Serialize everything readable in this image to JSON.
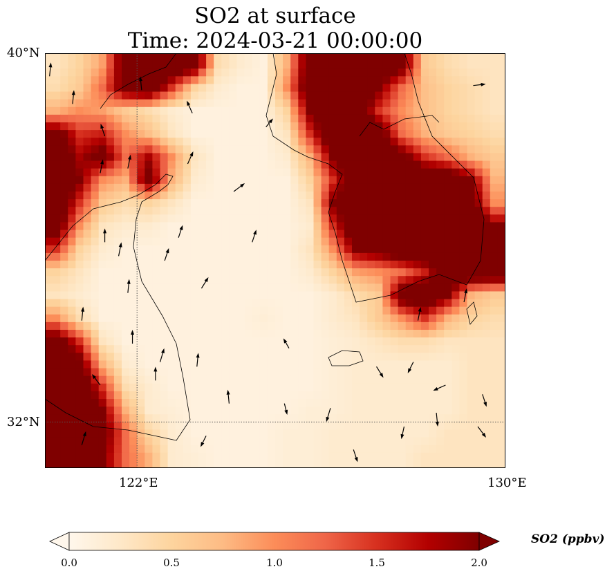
{
  "title": {
    "line1": "SO2 at surface",
    "line2": "Time: 2024-03-21 00:00:00"
  },
  "axes": {
    "lat_labels": [
      "40°N",
      "32°N"
    ],
    "lon_labels": [
      "122°E",
      "130°E"
    ]
  },
  "colorbar": {
    "label": "SO2 (ppbv)",
    "ticks": [
      "0.0",
      "0.5",
      "1.0",
      "1.5",
      "2.0"
    ],
    "min": 0,
    "max": 2.0,
    "colors": [
      "#fff7ec",
      "#fee8c8",
      "#fdd49e",
      "#fdbb84",
      "#fc8d59",
      "#ef6548",
      "#d7301f",
      "#b30000",
      "#7f0000"
    ]
  },
  "chart_data": {
    "type": "heatmap",
    "variable": "SO2 (ppbv)",
    "lon_range": [
      120,
      130
    ],
    "lat_range": [
      31,
      40
    ],
    "cell_deg": 0.5,
    "grid_rows_north_to_south": [
      [
        0.3,
        0.5,
        0.9,
        2.3,
        2.5,
        2.5,
        2.3,
        0.4,
        0.2,
        0.1,
        0.8,
        2.3,
        2.5,
        2.5,
        2.5,
        2.2,
        0.6,
        0.4,
        0.3,
        0.3
      ],
      [
        0.4,
        0.6,
        1.2,
        2.2,
        2.5,
        1.5,
        0.5,
        0.2,
        0.1,
        0.1,
        1.0,
        2.4,
        2.5,
        2.5,
        2.0,
        1.2,
        0.7,
        0.5,
        0.4,
        0.3
      ],
      [
        0.8,
        1.0,
        0.9,
        0.6,
        0.4,
        0.2,
        0.1,
        0.1,
        0.1,
        0.1,
        0.5,
        2.0,
        2.5,
        2.5,
        1.5,
        1.0,
        0.7,
        0.5,
        0.4,
        0.3
      ],
      [
        2.2,
        1.5,
        1.6,
        1.0,
        0.7,
        0.3,
        0.1,
        0.1,
        0.1,
        0.1,
        0.3,
        1.5,
        2.5,
        2.5,
        2.3,
        1.2,
        0.8,
        0.6,
        0.5,
        0.4
      ],
      [
        2.5,
        1.8,
        2.2,
        1.2,
        1.8,
        1.0,
        0.3,
        0.1,
        0.1,
        0.1,
        0.2,
        0.8,
        2.0,
        2.5,
        2.5,
        2.2,
        1.5,
        1.2,
        0.8,
        0.6
      ],
      [
        2.5,
        2.0,
        1.0,
        0.8,
        2.2,
        0.8,
        0.2,
        0.1,
        0.1,
        0.1,
        0.1,
        0.5,
        1.5,
        2.5,
        2.5,
        2.5,
        2.5,
        2.5,
        2.0,
        0.8
      ],
      [
        2.5,
        1.5,
        0.6,
        0.4,
        0.5,
        0.3,
        0.1,
        0.1,
        0.1,
        0.1,
        0.1,
        0.3,
        2.0,
        2.5,
        2.5,
        2.5,
        2.5,
        2.5,
        2.3,
        1.0
      ],
      [
        2.3,
        1.0,
        0.3,
        0.2,
        0.2,
        0.1,
        0.1,
        0.1,
        0.1,
        0.1,
        0.1,
        0.2,
        1.5,
        2.5,
        2.5,
        2.5,
        2.5,
        2.5,
        2.5,
        2.0
      ],
      [
        1.5,
        0.5,
        0.2,
        0.1,
        0.1,
        0.1,
        0.1,
        0.1,
        0.1,
        0.1,
        0.1,
        0.3,
        1.0,
        2.0,
        2.2,
        2.5,
        2.5,
        2.5,
        2.5,
        2.5
      ],
      [
        0.5,
        0.3,
        0.1,
        0.1,
        0.1,
        0.1,
        0.1,
        0.1,
        0.1,
        0.1,
        0.1,
        0.2,
        0.5,
        0.9,
        1.0,
        1.2,
        1.6,
        2.5,
        2.5,
        2.5
      ],
      [
        0.3,
        0.2,
        0.1,
        0.1,
        0.1,
        0.1,
        0.1,
        0.1,
        0.1,
        0.1,
        0.1,
        0.1,
        0.2,
        0.4,
        0.6,
        2.3,
        2.5,
        2.0,
        0.8,
        0.6
      ],
      [
        1.0,
        0.4,
        0.1,
        0.1,
        0.1,
        0.1,
        0.1,
        0.1,
        0.1,
        0.15,
        0.1,
        0.1,
        0.2,
        0.3,
        0.6,
        1.0,
        1.5,
        0.8,
        0.5,
        0.4
      ],
      [
        2.3,
        1.5,
        0.3,
        0.1,
        0.1,
        0.1,
        0.1,
        0.1,
        0.1,
        0.1,
        0.1,
        0.1,
        0.15,
        0.2,
        0.3,
        0.4,
        0.4,
        0.3,
        0.3,
        0.3
      ],
      [
        2.5,
        2.2,
        0.8,
        0.2,
        0.1,
        0.1,
        0.1,
        0.1,
        0.1,
        0.1,
        0.1,
        0.1,
        0.15,
        0.2,
        0.2,
        0.2,
        0.2,
        0.2,
        0.3,
        0.3
      ],
      [
        2.5,
        2.5,
        1.5,
        0.4,
        0.2,
        0.1,
        0.1,
        0.1,
        0.1,
        0.1,
        0.1,
        0.1,
        0.15,
        0.2,
        0.2,
        0.2,
        0.2,
        0.2,
        0.3,
        0.3
      ],
      [
        2.5,
        2.5,
        2.0,
        0.8,
        0.2,
        0.15,
        0.1,
        0.1,
        0.1,
        0.1,
        0.1,
        0.15,
        0.15,
        0.2,
        0.2,
        0.2,
        0.2,
        0.2,
        0.3,
        0.3
      ],
      [
        2.5,
        2.5,
        2.2,
        1.2,
        0.5,
        0.2,
        0.1,
        0.1,
        0.1,
        0.1,
        0.15,
        0.15,
        0.2,
        0.2,
        0.2,
        0.2,
        0.2,
        0.3,
        0.3,
        0.3
      ],
      [
        2.5,
        2.5,
        2.0,
        1.2,
        0.8,
        0.2,
        0.15,
        0.1,
        0.1,
        0.1,
        0.15,
        0.15,
        0.2,
        0.2,
        0.2,
        0.2,
        0.3,
        0.3,
        0.3,
        0.3
      ]
    ],
    "wind_vectors": [
      [
        120.1,
        39.5,
        0.1,
        1
      ],
      [
        120.6,
        38.9,
        0.1,
        1
      ],
      [
        121.3,
        38.2,
        -0.3,
        0.9
      ],
      [
        122.1,
        39.2,
        -0.1,
        1
      ],
      [
        123.2,
        38.7,
        -0.4,
        0.9
      ],
      [
        121.2,
        37.4,
        0.2,
        1
      ],
      [
        121.8,
        37.5,
        0.2,
        1
      ],
      [
        123.1,
        37.6,
        0.4,
        0.9
      ],
      [
        124.1,
        37,
        0.8,
        0.6
      ],
      [
        124.5,
        35.9,
        0.3,
        0.9
      ],
      [
        121.3,
        35.9,
        0,
        1
      ],
      [
        121.6,
        35.6,
        0.2,
        1
      ],
      [
        122.6,
        35.5,
        0.3,
        0.9
      ],
      [
        123.4,
        34.9,
        0.5,
        0.8
      ],
      [
        121.8,
        34.8,
        0.1,
        1
      ],
      [
        120.8,
        34.2,
        0.1,
        1
      ],
      [
        121.9,
        33.7,
        0,
        1
      ],
      [
        122.5,
        33.3,
        0.3,
        1
      ],
      [
        123.3,
        33.2,
        0.1,
        1
      ],
      [
        121.2,
        32.8,
        -0.6,
        0.8
      ],
      [
        122.4,
        32.9,
        0,
        1
      ],
      [
        124,
        32.4,
        -0.1,
        1
      ],
      [
        125.3,
        33.6,
        -0.4,
        0.7
      ],
      [
        127.2,
        33.2,
        0.5,
        -0.8
      ],
      [
        128,
        33.3,
        -0.4,
        -0.8
      ],
      [
        129.5,
        32.6,
        0.3,
        -0.9
      ],
      [
        128.7,
        32.8,
        -0.9,
        -0.4
      ],
      [
        127.8,
        31.9,
        -0.2,
        -0.9
      ],
      [
        128.5,
        32.2,
        0.1,
        -1
      ],
      [
        126.2,
        32.3,
        -0.3,
        -1
      ],
      [
        125.2,
        32.4,
        0.2,
        -0.8
      ],
      [
        126.7,
        31.4,
        0.3,
        -0.9
      ],
      [
        129.4,
        31.9,
        0.6,
        -0.8
      ],
      [
        123.5,
        31.7,
        -0.4,
        -0.8
      ],
      [
        129.3,
        39.3,
        0.9,
        0.1
      ],
      [
        124.8,
        38.4,
        0.5,
        0.6
      ],
      [
        122.9,
        36,
        0.3,
        0.9
      ],
      [
        128.1,
        34.2,
        0.2,
        1
      ],
      [
        129.1,
        34.6,
        0.2,
        1
      ],
      [
        120.8,
        31.5,
        0.3,
        1
      ]
    ]
  }
}
